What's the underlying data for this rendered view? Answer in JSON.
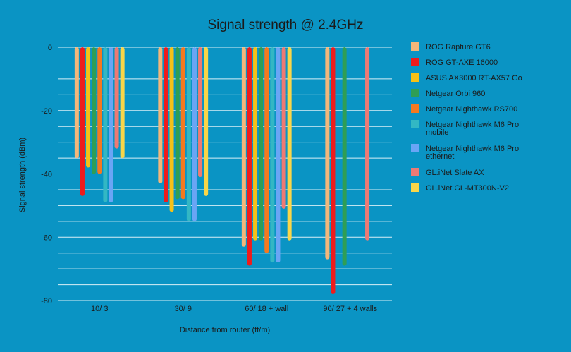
{
  "chart_data": {
    "type": "bar",
    "title": "Signal strength @ 2.4GHz",
    "xlabel": "Distance from router (ft/m)",
    "ylabel": "Signal strength (dBm)",
    "ylim": [
      -80,
      0
    ],
    "grid": true,
    "legend": "right",
    "categories": [
      "10/ 3",
      "30/ 9",
      "60/ 18 + wall",
      "90/ 27 + 4 walls"
    ],
    "y_ticks": [
      "0",
      "-20",
      "-40",
      "-60",
      "-80"
    ],
    "series": [
      {
        "name": "ROG Rapture GT6",
        "color": "#f3b77a",
        "values": [
          -35,
          -43,
          -63,
          -67
        ]
      },
      {
        "name": "ROG GT-AXE 16000",
        "color": "#ee1c1c",
        "values": [
          -47,
          -49,
          -69,
          -78
        ]
      },
      {
        "name": "ASUS AX3000 RT-AX57 Go",
        "color": "#f5c118",
        "values": [
          -38,
          -52,
          -61,
          null
        ]
      },
      {
        "name": "Netgear Orbi 960",
        "color": "#2f9e55",
        "values": [
          -40,
          -48,
          -61,
          -69
        ]
      },
      {
        "name": "Netgear Nighthawk RS700",
        "color": "#f47920",
        "values": [
          -40,
          -48,
          -65,
          null
        ]
      },
      {
        "name": "Netgear Nighthawk M6 Pro mobile",
        "color": "#33b7c4",
        "values": [
          -49,
          -55,
          -68,
          null
        ]
      },
      {
        "name": "Netgear Nighthawk M6 Pro ethernet",
        "color": "#6aa5f5",
        "values": [
          -49,
          -55,
          -68,
          null
        ]
      },
      {
        "name": "GL.iNet Slate AX",
        "color": "#ee7a74",
        "values": [
          -32,
          -41,
          -51,
          -61
        ]
      },
      {
        "name": "GL.iNet GL-MT300N-V2",
        "color": "#f9d649",
        "values": [
          -35,
          -47,
          -61,
          null
        ]
      }
    ]
  }
}
